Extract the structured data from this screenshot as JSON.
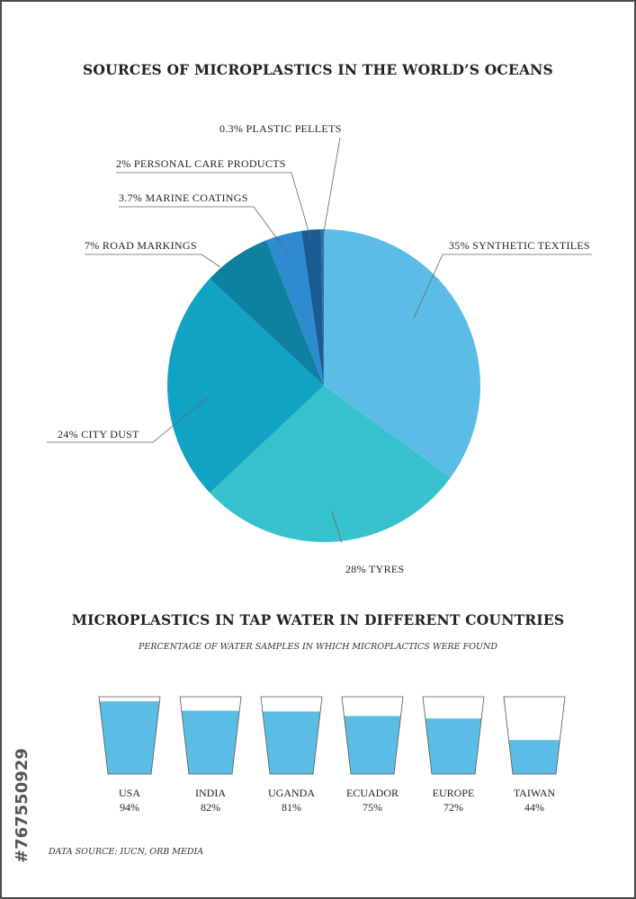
{
  "watermark": {
    "id_text": "#767550929"
  },
  "source": "DATA SOURCE: IUCN, ORB MEDIA",
  "chart_data": [
    {
      "type": "pie",
      "title": "SOURCES OF MICROPLASTICS IN THE WORLD’S OCEANS",
      "slices": [
        {
          "label": "35% SYNTHETIC TEXTILES",
          "value": 35,
          "color": "#5bbde6"
        },
        {
          "label": "28% TYRES",
          "value": 28,
          "color": "#36c2cc"
        },
        {
          "label": "24% CITY DUST",
          "value": 24,
          "color": "#12a3c4"
        },
        {
          "label": "7% ROAD MARKINGS",
          "value": 7,
          "color": "#0e80a0"
        },
        {
          "label": "3.7% MARINE COATINGS",
          "value": 3.7,
          "color": "#2e8bd2"
        },
        {
          "label": "2% PERSONAL CARE PRODUCTS",
          "value": 2,
          "color": "#1a5b93"
        },
        {
          "label": "0.3% PLASTIC PELLETS",
          "value": 0.3,
          "color": "#2c6fae"
        }
      ]
    },
    {
      "type": "bar",
      "title": "MICROPLASTICS IN TAP WATER IN DIFFERENT COUNTRIES",
      "subtitle": "PERCENTAGE OF WATER SAMPLES IN WHICH MICROPLACTICS WERE FOUND",
      "categories": [
        "USA",
        "INDIA",
        "UGANDA",
        "ECUADOR",
        "EUROPE",
        "TAIWAN"
      ],
      "values": [
        94,
        82,
        81,
        75,
        72,
        44
      ],
      "value_labels": [
        "94%",
        "82%",
        "81%",
        "75%",
        "72%",
        "44%"
      ],
      "ylim": [
        0,
        100
      ],
      "fill_color": "#5bbde6"
    }
  ]
}
